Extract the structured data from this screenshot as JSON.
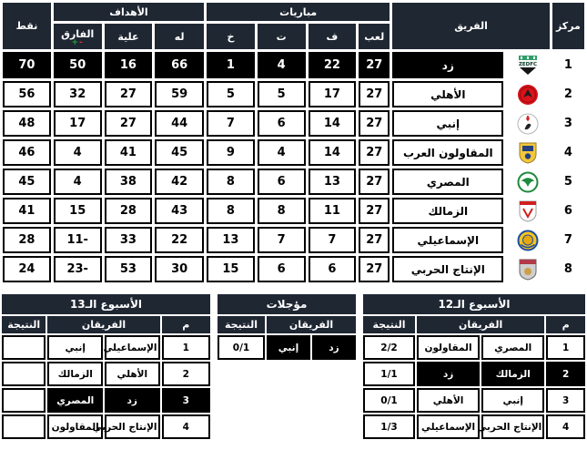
{
  "colors": {
    "header_bg": "#1f2733",
    "highlight_bg": "#000000",
    "cell_border": "#000000",
    "diff_plus_green": "#1fa33c",
    "diff_minus_red": "#e0312e"
  },
  "league_table": {
    "headers": {
      "rank": "مركز",
      "team": "الفريق",
      "matches_group": "مباريات",
      "played": "لعب",
      "won": "ف",
      "draw": "ت",
      "lost": "خ",
      "goals_group": "الأهداف",
      "goals_for": "له",
      "goals_against": "علية",
      "diff": "الفارق",
      "diff_minus": "-",
      "diff_plus": "+",
      "points": "نقط"
    },
    "rows": [
      {
        "rank": "1",
        "team": "زد",
        "logo": "zed",
        "played": "27",
        "won": "22",
        "draw": "4",
        "lost": "1",
        "goals_for": "66",
        "goals_against": "16",
        "diff": "50",
        "points": "70",
        "highlight": true
      },
      {
        "rank": "2",
        "team": "الأهلي",
        "logo": "ahly",
        "played": "27",
        "won": "17",
        "draw": "5",
        "lost": "5",
        "goals_for": "59",
        "goals_against": "27",
        "diff": "32",
        "points": "56",
        "highlight": false
      },
      {
        "rank": "3",
        "team": "إنبي",
        "logo": "enppi",
        "played": "27",
        "won": "14",
        "draw": "6",
        "lost": "7",
        "goals_for": "44",
        "goals_against": "27",
        "diff": "17",
        "points": "48",
        "highlight": false
      },
      {
        "rank": "4",
        "team": "المقاولون العرب",
        "logo": "contractors",
        "played": "27",
        "won": "14",
        "draw": "4",
        "lost": "9",
        "goals_for": "45",
        "goals_against": "41",
        "diff": "4",
        "points": "46",
        "highlight": false
      },
      {
        "rank": "5",
        "team": "المصري",
        "logo": "masry",
        "played": "27",
        "won": "13",
        "draw": "6",
        "lost": "8",
        "goals_for": "42",
        "goals_against": "38",
        "diff": "4",
        "points": "45",
        "highlight": false
      },
      {
        "rank": "6",
        "team": "الزمالك",
        "logo": "zamalek",
        "played": "27",
        "won": "11",
        "draw": "8",
        "lost": "8",
        "goals_for": "43",
        "goals_against": "28",
        "diff": "15",
        "points": "41",
        "highlight": false
      },
      {
        "rank": "7",
        "team": "الإسماعيلي",
        "logo": "ismaily",
        "played": "27",
        "won": "7",
        "draw": "7",
        "lost": "13",
        "goals_for": "22",
        "goals_against": "33",
        "diff": "11-",
        "points": "28",
        "highlight": false
      },
      {
        "rank": "8",
        "team": "الإنتاج الحربي",
        "logo": "entag",
        "played": "27",
        "won": "6",
        "draw": "6",
        "lost": "15",
        "goals_for": "30",
        "goals_against": "53",
        "diff": "23-",
        "points": "24",
        "highlight": false
      }
    ]
  },
  "fixtures": {
    "common_headers": {
      "num": "م",
      "teams": "الفريقان",
      "result": "النتيجة"
    },
    "week12": {
      "title": "الأسبوع الـ12",
      "rows": [
        {
          "num": "1",
          "team_right": "المصري",
          "team_left": "المقاولون",
          "result": "2/2",
          "highlight": false
        },
        {
          "num": "2",
          "team_right": "الزمالك",
          "team_left": "زد",
          "result": "1/1",
          "highlight": true
        },
        {
          "num": "3",
          "team_right": "إنبي",
          "team_left": "الأهلي",
          "result": "0/1",
          "highlight": false
        },
        {
          "num": "4",
          "team_right": "الإنتاج الحربي",
          "team_left": "الإسماعيلي",
          "result": "1/3",
          "highlight": false
        }
      ]
    },
    "postponed": {
      "title": "مؤجلات",
      "rows": [
        {
          "team_right": "زد",
          "team_left": "إنبي",
          "result": "0/1",
          "highlight": true
        }
      ]
    },
    "week13": {
      "title": "الأسبوع الـ13",
      "rows": [
        {
          "num": "1",
          "team_right": "الإسماعيلي",
          "team_left": "إنبي",
          "result": "",
          "highlight": false
        },
        {
          "num": "2",
          "team_right": "الأهلي",
          "team_left": "الزمالك",
          "result": "",
          "highlight": false
        },
        {
          "num": "3",
          "team_right": "زد",
          "team_left": "المصري",
          "result": "",
          "highlight": true
        },
        {
          "num": "4",
          "team_right": "الإنتاج الحربي",
          "team_left": "المقاولون",
          "result": "",
          "highlight": false
        }
      ]
    }
  }
}
